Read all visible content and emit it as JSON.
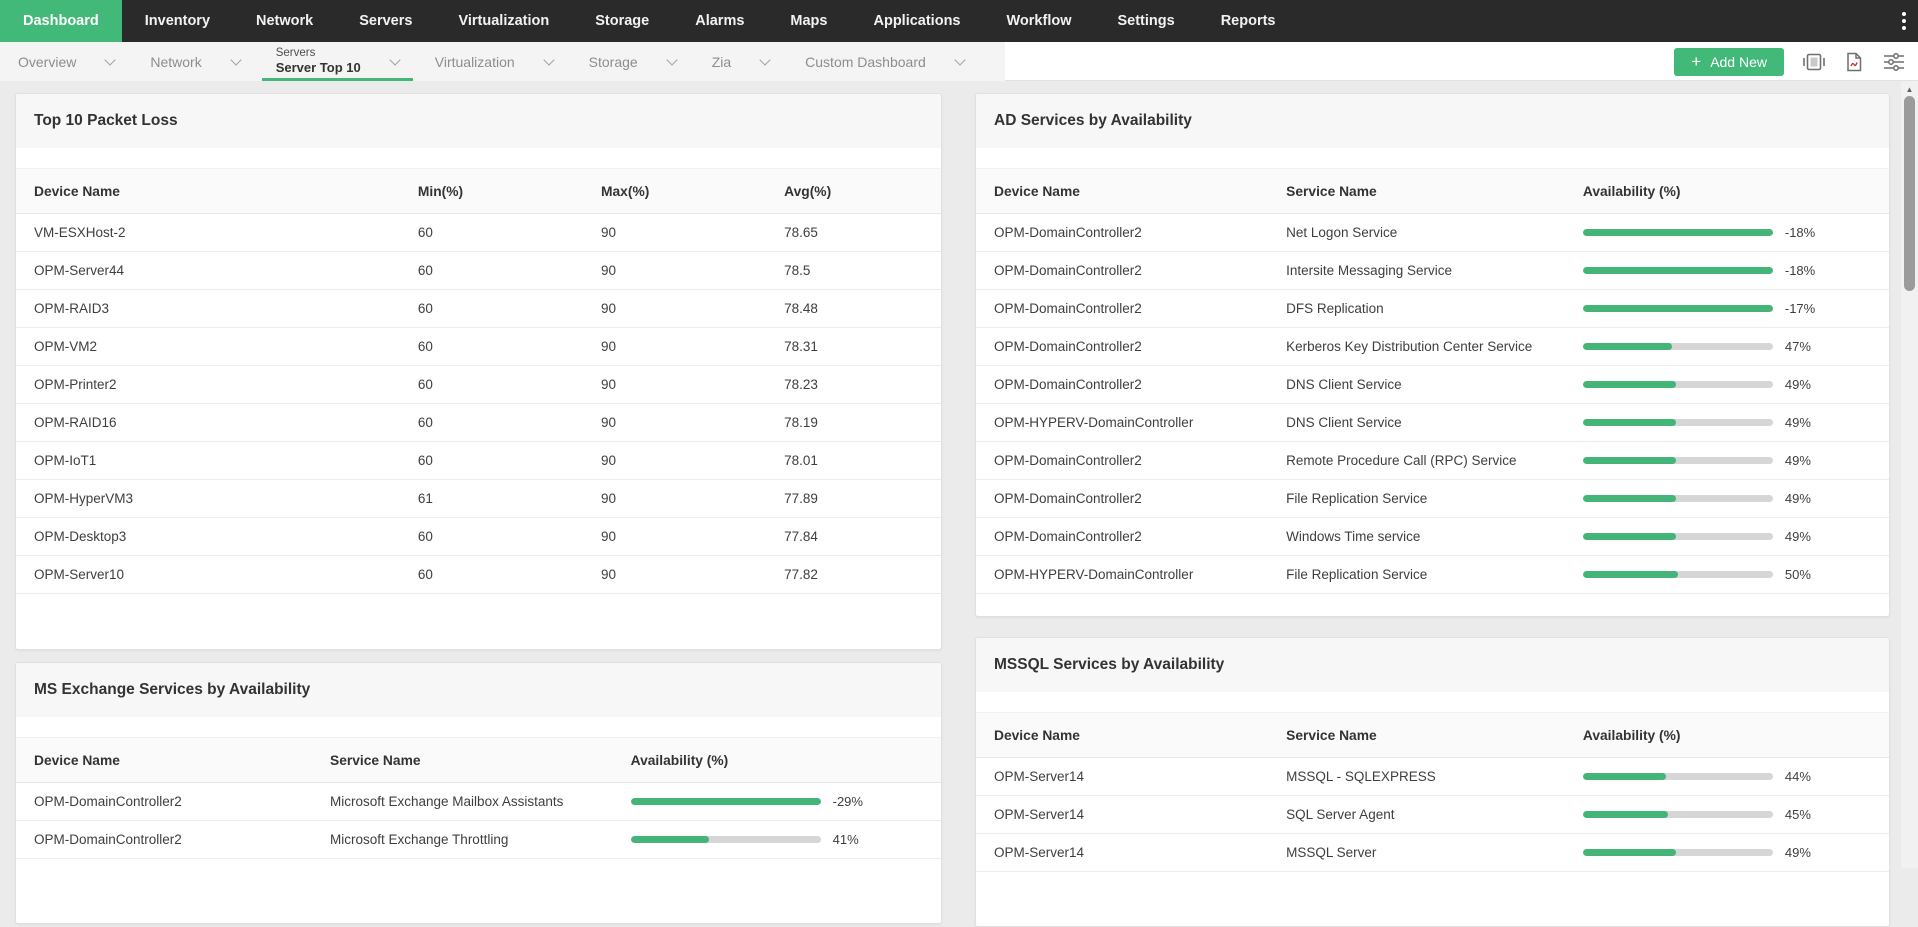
{
  "topnav": {
    "items": [
      {
        "label": "Dashboard",
        "active": true
      },
      {
        "label": "Inventory",
        "active": false
      },
      {
        "label": "Network",
        "active": false
      },
      {
        "label": "Servers",
        "active": false
      },
      {
        "label": "Virtualization",
        "active": false
      },
      {
        "label": "Storage",
        "active": false
      },
      {
        "label": "Alarms",
        "active": false
      },
      {
        "label": "Maps",
        "active": false
      },
      {
        "label": "Applications",
        "active": false
      },
      {
        "label": "Workflow",
        "active": false
      },
      {
        "label": "Settings",
        "active": false
      },
      {
        "label": "Reports",
        "active": false
      }
    ]
  },
  "toolbar": {
    "tabs": [
      {
        "label": "Overview"
      },
      {
        "label": "Network"
      },
      {
        "label": "Server Top 10",
        "sublabel": "Servers",
        "active": true
      },
      {
        "label": "Virtualization"
      },
      {
        "label": "Storage"
      },
      {
        "label": "Zia"
      },
      {
        "label": "Custom Dashboard"
      }
    ],
    "add_new": {
      "plus": "+",
      "label": "Add New"
    }
  },
  "panels": {
    "packet_loss": {
      "title": "Top 10 Packet Loss",
      "columns": [
        "Device Name",
        "Min(%)",
        "Max(%)",
        "Avg(%)"
      ],
      "rows": [
        {
          "device": "VM-ESXHost-2",
          "min": "60",
          "max": "90",
          "avg": "78.65"
        },
        {
          "device": "OPM-Server44",
          "min": "60",
          "max": "90",
          "avg": "78.5"
        },
        {
          "device": "OPM-RAID3",
          "min": "60",
          "max": "90",
          "avg": "78.48"
        },
        {
          "device": "OPM-VM2",
          "min": "60",
          "max": "90",
          "avg": "78.31"
        },
        {
          "device": "OPM-Printer2",
          "min": "60",
          "max": "90",
          "avg": "78.23"
        },
        {
          "device": "OPM-RAID16",
          "min": "60",
          "max": "90",
          "avg": "78.19"
        },
        {
          "device": "OPM-IoT1",
          "min": "60",
          "max": "90",
          "avg": "78.01"
        },
        {
          "device": "OPM-HyperVM3",
          "min": "61",
          "max": "90",
          "avg": "77.89"
        },
        {
          "device": "OPM-Desktop3",
          "min": "60",
          "max": "90",
          "avg": "77.84"
        },
        {
          "device": "OPM-Server10",
          "min": "60",
          "max": "90",
          "avg": "77.82"
        }
      ]
    },
    "ad_services": {
      "title": "AD Services by Availability",
      "columns": [
        "Device Name",
        "Service Name",
        "Availability (%)"
      ],
      "rows": [
        {
          "device": "OPM-DomainController2",
          "service": "Net Logon Service",
          "value": "-18%",
          "fill": 100
        },
        {
          "device": "OPM-DomainController2",
          "service": "Intersite Messaging Service",
          "value": "-18%",
          "fill": 100
        },
        {
          "device": "OPM-DomainController2",
          "service": "DFS Replication",
          "value": "-17%",
          "fill": 100
        },
        {
          "device": "OPM-DomainController2",
          "service": "Kerberos Key Distribution Center Service",
          "value": "47%",
          "fill": 47
        },
        {
          "device": "OPM-DomainController2",
          "service": "DNS Client Service",
          "value": "49%",
          "fill": 49
        },
        {
          "device": "OPM-HYPERV-DomainController",
          "service": "DNS Client Service",
          "value": "49%",
          "fill": 49
        },
        {
          "device": "OPM-DomainController2",
          "service": "Remote Procedure Call (RPC) Service",
          "value": "49%",
          "fill": 49
        },
        {
          "device": "OPM-DomainController2",
          "service": "File Replication Service",
          "value": "49%",
          "fill": 49
        },
        {
          "device": "OPM-DomainController2",
          "service": "Windows Time service",
          "value": "49%",
          "fill": 49
        },
        {
          "device": "OPM-HYPERV-DomainController",
          "service": "File Replication Service",
          "value": "50%",
          "fill": 50
        }
      ]
    },
    "exchange_services": {
      "title": "MS Exchange Services by Availability",
      "columns": [
        "Device Name",
        "Service Name",
        "Availability (%)"
      ],
      "rows": [
        {
          "device": "OPM-DomainController2",
          "service": "Microsoft Exchange Mailbox Assistants",
          "value": "-29%",
          "fill": 100
        },
        {
          "device": "OPM-DomainController2",
          "service": "Microsoft Exchange Throttling",
          "value": "41%",
          "fill": 41
        }
      ]
    },
    "mssql_services": {
      "title": "MSSQL Services by Availability",
      "columns": [
        "Device Name",
        "Service Name",
        "Availability (%)"
      ],
      "rows": [
        {
          "device": "OPM-Server14",
          "service": "MSSQL - SQLEXPRESS",
          "value": "44%",
          "fill": 44
        },
        {
          "device": "OPM-Server14",
          "service": "SQL Server Agent",
          "value": "45%",
          "fill": 45
        },
        {
          "device": "OPM-Server14",
          "service": "MSSQL Server",
          "value": "49%",
          "fill": 49
        }
      ]
    }
  },
  "colors": {
    "accent_green": "#42b879",
    "bar_fill_green": "#45b478",
    "bar_track_gray": "#d6d6d6",
    "nav_bg": "#2a2a2a"
  }
}
